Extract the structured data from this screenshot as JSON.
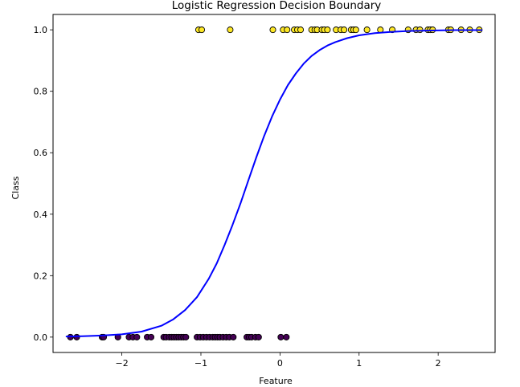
{
  "chart_data": {
    "type": "scatter",
    "title": "Logistic Regression Decision Boundary",
    "xlabel": "Feature",
    "ylabel": "Class",
    "xlim": [
      -2.87,
      2.72
    ],
    "ylim": [
      -0.05,
      1.05
    ],
    "xticks": [
      -2,
      -1,
      0,
      1,
      2
    ],
    "xtick_labels": [
      "−2",
      "−1",
      "0",
      "1",
      "2"
    ],
    "yticks": [
      0.0,
      0.2,
      0.4,
      0.6,
      0.8,
      1.0
    ],
    "ytick_labels": [
      "0.0",
      "0.2",
      "0.4",
      "0.6",
      "0.8",
      "1.0"
    ],
    "grid": false,
    "series": [
      {
        "kind": "scatter",
        "class": 0,
        "color": "#440154",
        "x": [
          -2.65,
          -2.57,
          -2.25,
          -2.23,
          -2.05,
          -1.91,
          -1.86,
          -1.81,
          -1.68,
          -1.63,
          -1.47,
          -1.44,
          -1.4,
          -1.37,
          -1.34,
          -1.31,
          -1.28,
          -1.25,
          -1.22,
          -1.19,
          -1.05,
          -1.01,
          -0.97,
          -0.93,
          -0.89,
          -0.85,
          -0.82,
          -0.79,
          -0.76,
          -0.72,
          -0.68,
          -0.64,
          -0.59,
          -0.42,
          -0.39,
          -0.36,
          -0.31,
          -0.27,
          0.01,
          0.08
        ],
        "y": [
          0,
          0,
          0,
          0,
          0,
          0,
          0,
          0,
          0,
          0,
          0,
          0,
          0,
          0,
          0,
          0,
          0,
          0,
          0,
          0,
          0,
          0,
          0,
          0,
          0,
          0,
          0,
          0,
          0,
          0,
          0,
          0,
          0,
          0,
          0,
          0,
          0,
          0,
          0,
          0
        ]
      },
      {
        "kind": "scatter",
        "class": 1,
        "color": "#fde725",
        "x": [
          -1.03,
          -0.99,
          -0.63,
          -0.09,
          0.04,
          0.09,
          0.18,
          0.22,
          0.26,
          0.4,
          0.44,
          0.47,
          0.53,
          0.56,
          0.6,
          0.71,
          0.77,
          0.81,
          0.9,
          0.93,
          0.96,
          1.1,
          1.27,
          1.42,
          1.62,
          1.72,
          1.77,
          1.87,
          1.9,
          1.93,
          2.13,
          2.16,
          2.29,
          2.4,
          2.52
        ],
        "y": [
          1,
          1,
          1,
          1,
          1,
          1,
          1,
          1,
          1,
          1,
          1,
          1,
          1,
          1,
          1,
          1,
          1,
          1,
          1,
          1,
          1,
          1,
          1,
          1,
          1,
          1,
          1,
          1,
          1,
          1,
          1,
          1,
          1,
          1,
          1
        ]
      },
      {
        "kind": "line",
        "color": "#0000ff",
        "x": [
          -2.7,
          -2.5,
          -2.25,
          -2.0,
          -1.75,
          -1.5,
          -1.35,
          -1.2,
          -1.05,
          -0.9,
          -0.8,
          -0.7,
          -0.6,
          -0.5,
          -0.4,
          -0.3,
          -0.2,
          -0.1,
          0.0,
          0.1,
          0.2,
          0.3,
          0.4,
          0.5,
          0.6,
          0.7,
          0.85,
          1.0,
          1.2,
          1.4,
          1.6,
          1.8,
          2.0,
          2.2,
          2.4,
          2.55
        ],
        "y": [
          0.002,
          0.003,
          0.005,
          0.009,
          0.018,
          0.037,
          0.058,
          0.088,
          0.13,
          0.19,
          0.24,
          0.3,
          0.365,
          0.435,
          0.51,
          0.585,
          0.655,
          0.718,
          0.773,
          0.82,
          0.858,
          0.89,
          0.915,
          0.934,
          0.949,
          0.96,
          0.973,
          0.982,
          0.989,
          0.993,
          0.996,
          0.997,
          0.998,
          0.999,
          0.999,
          0.999
        ]
      }
    ]
  }
}
